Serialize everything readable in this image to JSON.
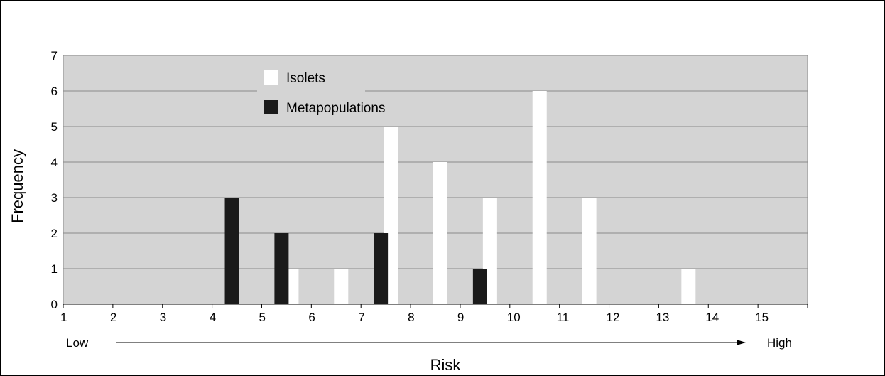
{
  "chart_data": {
    "type": "bar",
    "categories": [
      "1",
      "2",
      "3",
      "4",
      "5",
      "6",
      "7",
      "8",
      "9",
      "10",
      "11",
      "12",
      "13",
      "14",
      "15"
    ],
    "series": [
      {
        "name": "Isolets",
        "color": "#ffffff",
        "points": [
          {
            "x": 5.5,
            "y": 1
          },
          {
            "x": 6.5,
            "y": 1
          },
          {
            "x": 7.5,
            "y": 5
          },
          {
            "x": 8.5,
            "y": 4
          },
          {
            "x": 9.5,
            "y": 3
          },
          {
            "x": 10.5,
            "y": 6
          },
          {
            "x": 11.5,
            "y": 3
          },
          {
            "x": 13.5,
            "y": 1
          }
        ]
      },
      {
        "name": "Metapopulations",
        "color": "#1a1a1a",
        "points": [
          {
            "x": 4.5,
            "y": 3
          },
          {
            "x": 5.5,
            "y": 2
          },
          {
            "x": 7.5,
            "y": 2
          },
          {
            "x": 9.5,
            "y": 1
          }
        ]
      }
    ],
    "xlabel": "Risk",
    "ylabel": "Frequency",
    "xlim": [
      1,
      16
    ],
    "ylim": [
      0,
      7
    ],
    "yticks": [
      "0",
      "1",
      "2",
      "3",
      "4",
      "5",
      "6",
      "7"
    ],
    "grid": true,
    "plot_background": "#d4d4d4",
    "legend_position": "top-left",
    "arrow": {
      "start_label": "Low",
      "end_label": "High"
    }
  }
}
